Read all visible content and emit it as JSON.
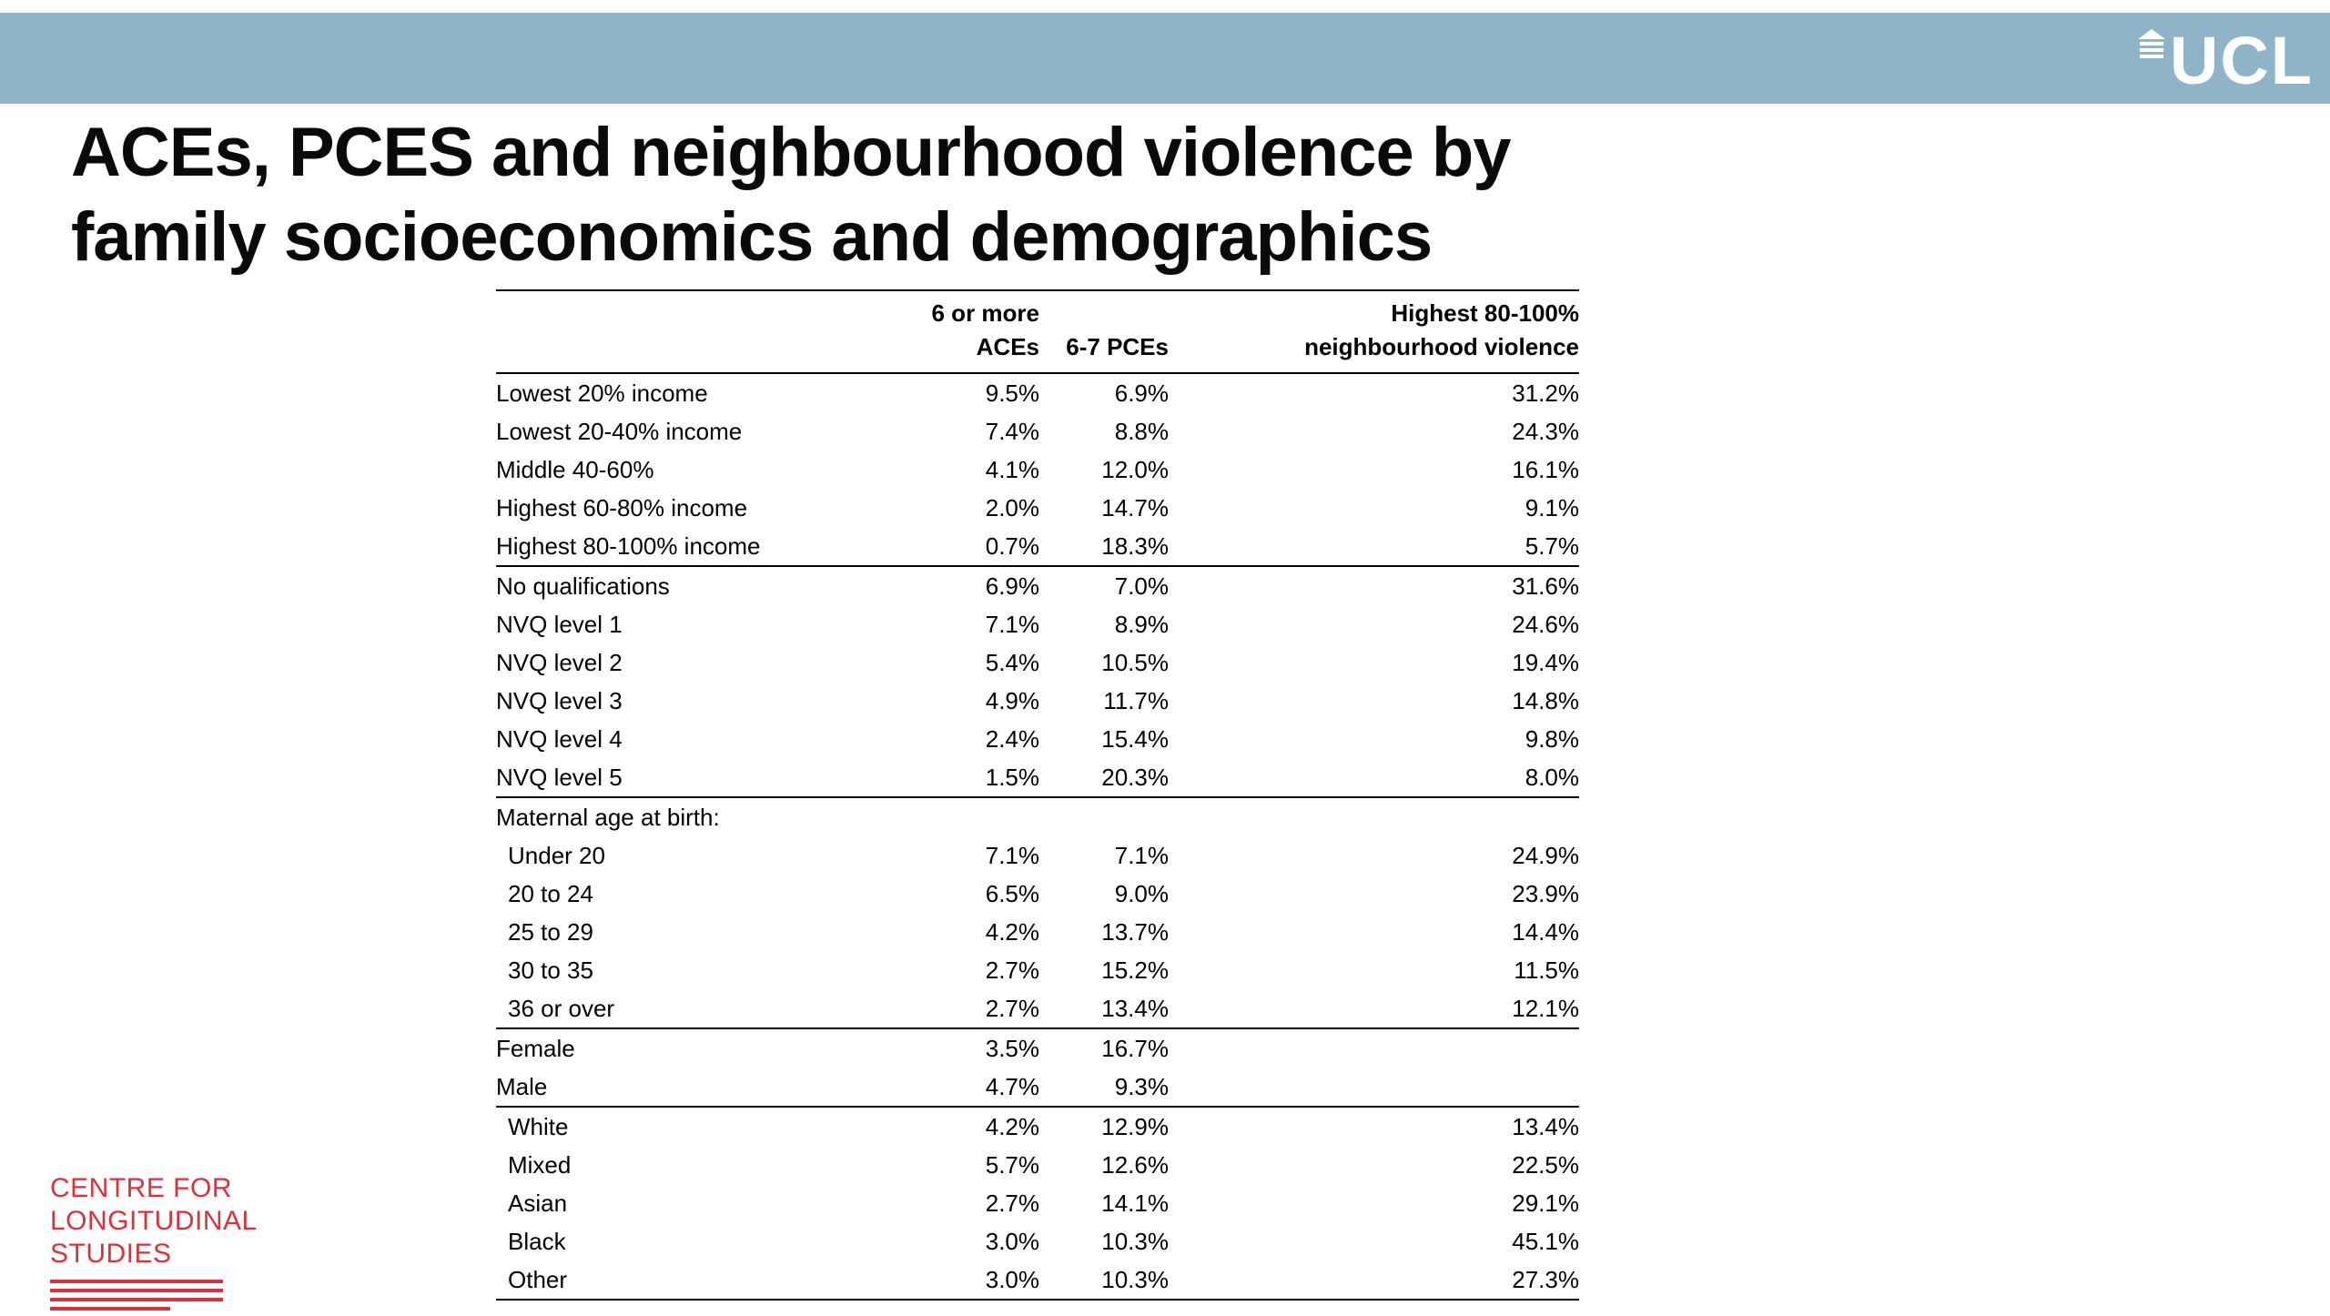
{
  "banner": {
    "ucl_logo_text": "UCL",
    "band_color": "#8fb4c7"
  },
  "title": {
    "line1": "ACEs, PCES and neighbourhood violence by",
    "line2": "family socioeconomics and demographics"
  },
  "table": {
    "headers": {
      "col_aces_line1": "6 or more",
      "col_aces_line2": "ACEs",
      "col_pces": "6-7 PCEs",
      "col_violence_line1": "Highest 80-100%",
      "col_violence_line2": "neighbourhood violence"
    },
    "rows": [
      {
        "label": "Lowest 20% income",
        "aces": "9.5%",
        "pces": "6.9%",
        "violence": "31.2%"
      },
      {
        "label": "Lowest 20-40% income",
        "aces": "7.4%",
        "pces": "8.8%",
        "violence": "24.3%"
      },
      {
        "label": "Middle 40-60%",
        "aces": "4.1%",
        "pces": "12.0%",
        "violence": "16.1%"
      },
      {
        "label": "Highest 60-80% income",
        "aces": "2.0%",
        "pces": "14.7%",
        "violence": "9.1%"
      },
      {
        "label": "Highest 80-100% income",
        "aces": "0.7%",
        "pces": "18.3%",
        "violence": "5.7%",
        "section_end": true
      },
      {
        "label": "No qualifications",
        "aces": "6.9%",
        "pces": "7.0%",
        "violence": "31.6%"
      },
      {
        "label": "NVQ level 1",
        "aces": "7.1%",
        "pces": "8.9%",
        "violence": "24.6%"
      },
      {
        "label": "NVQ level 2",
        "aces": "5.4%",
        "pces": "10.5%",
        "violence": "19.4%"
      },
      {
        "label": "NVQ level 3",
        "aces": "4.9%",
        "pces": "11.7%",
        "violence": "14.8%"
      },
      {
        "label": "NVQ level 4",
        "aces": "2.4%",
        "pces": "15.4%",
        "violence": "9.8%"
      },
      {
        "label": "NVQ level 5",
        "aces": "1.5%",
        "pces": "20.3%",
        "violence": "8.0%",
        "section_end": true
      },
      {
        "label": "Maternal age at birth:",
        "aces": "",
        "pces": "",
        "violence": ""
      },
      {
        "label": "Under 20",
        "aces": "7.1%",
        "pces": "7.1%",
        "violence": "24.9%",
        "indent": true
      },
      {
        "label": "20 to 24",
        "aces": "6.5%",
        "pces": "9.0%",
        "violence": "23.9%",
        "indent": true
      },
      {
        "label": "25 to 29",
        "aces": "4.2%",
        "pces": "13.7%",
        "violence": "14.4%",
        "indent": true
      },
      {
        "label": "30 to 35",
        "aces": "2.7%",
        "pces": "15.2%",
        "violence": "11.5%",
        "indent": true
      },
      {
        "label": "36 or over",
        "aces": "2.7%",
        "pces": "13.4%",
        "violence": "12.1%",
        "indent": true,
        "section_end": true
      },
      {
        "label": "Female",
        "aces": "3.5%",
        "pces": "16.7%",
        "violence": ""
      },
      {
        "label": "Male",
        "aces": "4.7%",
        "pces": "9.3%",
        "violence": "",
        "section_end": true
      },
      {
        "label": "White",
        "aces": "4.2%",
        "pces": "12.9%",
        "violence": "13.4%",
        "indent": true
      },
      {
        "label": "Mixed",
        "aces": "5.7%",
        "pces": "12.6%",
        "violence": "22.5%",
        "indent": true
      },
      {
        "label": "Asian",
        "aces": "2.7%",
        "pces": "14.1%",
        "violence": "29.1%",
        "indent": true
      },
      {
        "label": "Black",
        "aces": "3.0%",
        "pces": "10.3%",
        "violence": "45.1%",
        "indent": true
      },
      {
        "label": "Other",
        "aces": "3.0%",
        "pces": "10.3%",
        "violence": "27.3%",
        "indent": true,
        "section_end": true
      }
    ]
  },
  "footer": {
    "org_line1": "CENTRE FOR",
    "org_line2": "LONGITUDINAL",
    "org_line3": "STUDIES",
    "brand_color": "#d9323e"
  }
}
